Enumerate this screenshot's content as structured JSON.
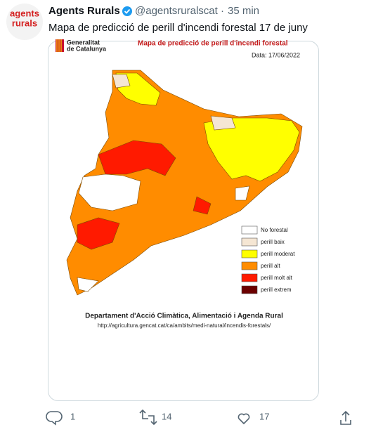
{
  "tweet": {
    "avatar_text": [
      "agents",
      "rurals"
    ],
    "author": {
      "name": "Agents Rurals",
      "handle": "@agentsruralscat",
      "separator": "·",
      "time": "35 min"
    },
    "text": "Mapa de predicció de perill d'incendi forestal 17 de juny",
    "image": {
      "logo": [
        "Generalitat",
        "de Catalunya"
      ],
      "title": "Mapa de predicció de perill d'incendi forestal",
      "date": "Data: 17/06/2022",
      "legend": [
        "No forestal",
        "perill baix",
        "perill moderat",
        "perill alt",
        "perill molt alt",
        "perill extrem"
      ],
      "footer": "Departament d'Acció Climàtica, Alimentació i Agenda Rural",
      "url": "http://agricultura.gencat.cat/ca/ambits/medi-natural/incendis-forestals/"
    },
    "actions": {
      "replies": "1",
      "retweets": "14",
      "likes": "17"
    }
  }
}
